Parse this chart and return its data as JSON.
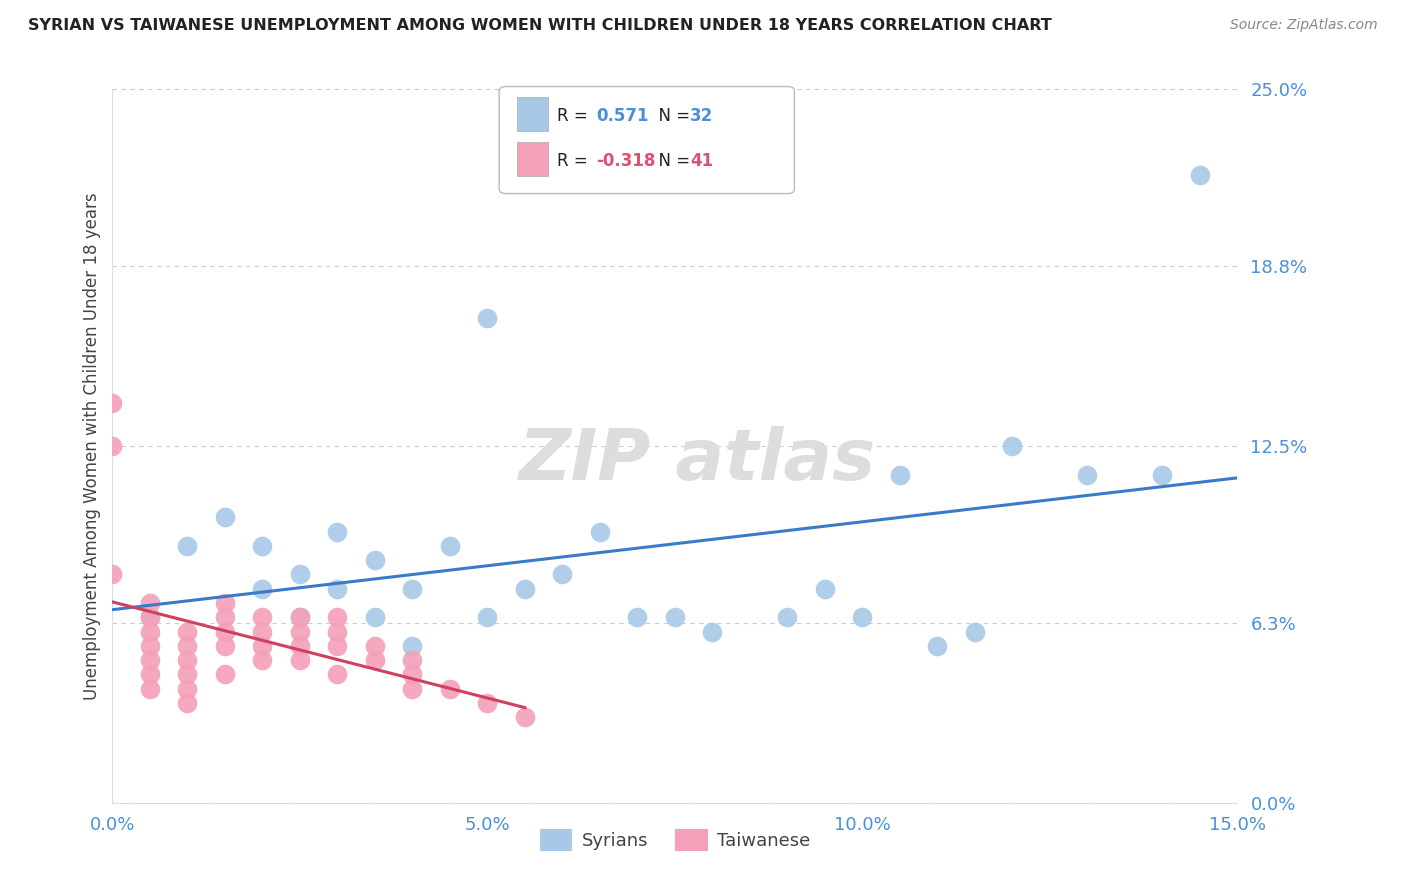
{
  "title": "SYRIAN VS TAIWANESE UNEMPLOYMENT AMONG WOMEN WITH CHILDREN UNDER 18 YEARS CORRELATION CHART",
  "source": "Source: ZipAtlas.com",
  "ylabel": "Unemployment Among Women with Children Under 18 years",
  "xlim": [
    0.0,
    0.15
  ],
  "ylim": [
    0.0,
    0.25
  ],
  "xticks": [
    0.0,
    0.05,
    0.1,
    0.15
  ],
  "xtick_labels": [
    "0.0%",
    "5.0%",
    "10.0%",
    "15.0%"
  ],
  "ytick_labels": [
    "0.0%",
    "6.3%",
    "12.5%",
    "18.8%",
    "25.0%"
  ],
  "yticks": [
    0.0,
    0.063,
    0.125,
    0.188,
    0.25
  ],
  "syrian_color": "#A8C8E8",
  "taiwanese_color": "#F4A0B8",
  "syrian_line_color": "#3A7BC8",
  "taiwanese_line_color": "#D04060",
  "R_syrian": 0.571,
  "N_syrian": 32,
  "R_taiwanese": -0.318,
  "N_taiwanese": 41,
  "syrian_x": [
    0.005,
    0.01,
    0.015,
    0.02,
    0.02,
    0.025,
    0.025,
    0.03,
    0.03,
    0.035,
    0.035,
    0.04,
    0.04,
    0.045,
    0.05,
    0.05,
    0.055,
    0.06,
    0.065,
    0.07,
    0.075,
    0.08,
    0.09,
    0.095,
    0.1,
    0.105,
    0.11,
    0.115,
    0.12,
    0.13,
    0.14,
    0.145
  ],
  "syrian_y": [
    0.065,
    0.09,
    0.1,
    0.09,
    0.075,
    0.08,
    0.065,
    0.095,
    0.075,
    0.085,
    0.065,
    0.075,
    0.055,
    0.09,
    0.17,
    0.065,
    0.075,
    0.08,
    0.095,
    0.065,
    0.065,
    0.06,
    0.065,
    0.075,
    0.065,
    0.115,
    0.055,
    0.06,
    0.125,
    0.115,
    0.115,
    0.22
  ],
  "taiwanese_x": [
    0.0,
    0.0,
    0.0,
    0.005,
    0.005,
    0.005,
    0.005,
    0.005,
    0.005,
    0.005,
    0.01,
    0.01,
    0.01,
    0.01,
    0.01,
    0.01,
    0.015,
    0.015,
    0.015,
    0.015,
    0.015,
    0.02,
    0.02,
    0.02,
    0.02,
    0.025,
    0.025,
    0.025,
    0.025,
    0.03,
    0.03,
    0.03,
    0.03,
    0.035,
    0.035,
    0.04,
    0.04,
    0.04,
    0.045,
    0.05,
    0.055
  ],
  "taiwanese_y": [
    0.14,
    0.125,
    0.08,
    0.07,
    0.065,
    0.06,
    0.055,
    0.05,
    0.045,
    0.04,
    0.06,
    0.055,
    0.05,
    0.045,
    0.04,
    0.035,
    0.07,
    0.065,
    0.06,
    0.055,
    0.045,
    0.065,
    0.06,
    0.055,
    0.05,
    0.065,
    0.06,
    0.055,
    0.05,
    0.065,
    0.06,
    0.055,
    0.045,
    0.055,
    0.05,
    0.05,
    0.045,
    0.04,
    0.04,
    0.035,
    0.03
  ]
}
